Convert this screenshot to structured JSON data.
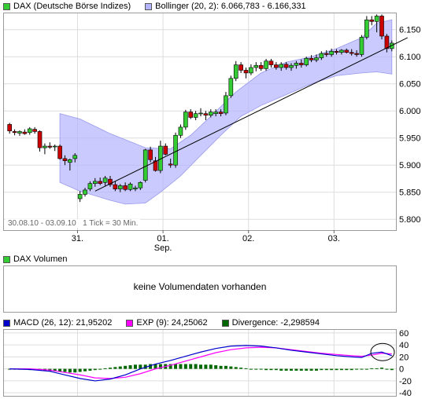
{
  "legend_top": {
    "series_label": "DAX (Deutsche Börse Indizes)",
    "series_color": "#33cc33",
    "bollinger_label": "Bollinger (20, 2): 6.066,783 - 6.166,331",
    "bollinger_color": "#b4b4ff"
  },
  "legend_volume": {
    "label": "DAX Volumen",
    "color": "#33cc33"
  },
  "volume_message": "keine Volumendaten vorhanden",
  "legend_macd": {
    "macd_label": "MACD (26, 12): 21,95202",
    "macd_color": "#0000cc",
    "exp_label": "EXP (9): 24,25062",
    "exp_color": "#ff00ff",
    "div_label": "Divergence: -2,298594",
    "div_color": "#006600"
  },
  "info_box": {
    "range": "30.08.10 - 03.09.10",
    "tick": "1 Tick = 30 Min."
  },
  "chart_data": [
    {
      "type": "candlestick",
      "ylim": [
        5780,
        6180
      ],
      "y_ticks": [
        "6.150",
        "6.100",
        "6.050",
        "6.000",
        "5.950",
        "5.900",
        "5.850",
        "5.800"
      ],
      "y_tick_values": [
        6150,
        6100,
        6050,
        6000,
        5950,
        5900,
        5850,
        5800
      ],
      "x_tick_labels": [
        "31.",
        "01.",
        "02.",
        "03."
      ],
      "x_sublabel": "Sep.",
      "grid": true,
      "candles": [
        [
          5975,
          5978,
          5958,
          5963
        ],
        [
          5962,
          5966,
          5955,
          5960
        ],
        [
          5959,
          5964,
          5954,
          5962
        ],
        [
          5961,
          5966,
          5956,
          5958
        ],
        [
          5960,
          5970,
          5956,
          5967
        ],
        [
          5966,
          5970,
          5958,
          5962
        ],
        [
          5962,
          5964,
          5925,
          5932
        ],
        [
          5932,
          5940,
          5920,
          5935
        ],
        [
          5935,
          5942,
          5930,
          5933
        ],
        [
          5934,
          5938,
          5926,
          5935
        ],
        [
          5935,
          5938,
          5910,
          5912
        ],
        [
          5912,
          5918,
          5900,
          5908
        ],
        [
          5905,
          5912,
          5890,
          5910
        ],
        [
          5912,
          5922,
          5905,
          5918
        ],
        [
          5838,
          5852,
          5832,
          5846
        ],
        [
          5846,
          5858,
          5842,
          5854
        ],
        [
          5856,
          5870,
          5852,
          5866
        ],
        [
          5866,
          5876,
          5860,
          5870
        ],
        [
          5870,
          5877,
          5863,
          5866
        ],
        [
          5868,
          5880,
          5862,
          5876
        ],
        [
          5874,
          5880,
          5860,
          5864
        ],
        [
          5864,
          5870,
          5852,
          5856
        ],
        [
          5856,
          5865,
          5850,
          5862
        ],
        [
          5862,
          5868,
          5852,
          5855
        ],
        [
          5855,
          5868,
          5852,
          5865
        ],
        [
          5856,
          5862,
          5852,
          5858
        ],
        [
          5858,
          5870,
          5854,
          5868
        ],
        [
          5872,
          5930,
          5868,
          5928
        ],
        [
          5928,
          5934,
          5905,
          5910
        ],
        [
          5908,
          5915,
          5888,
          5890
        ],
        [
          5890,
          5945,
          5885,
          5935
        ],
        [
          5935,
          5940,
          5918,
          5920
        ],
        [
          5902,
          5912,
          5895,
          5900
        ],
        [
          5900,
          5960,
          5895,
          5955
        ],
        [
          5955,
          5975,
          5950,
          5970
        ],
        [
          5970,
          6002,
          5965,
          5998
        ],
        [
          5998,
          6003,
          5985,
          5988
        ],
        [
          5988,
          6000,
          5983,
          5995
        ],
        [
          5995,
          6005,
          5990,
          5996
        ],
        [
          5995,
          6000,
          5983,
          5992
        ],
        [
          5992,
          6003,
          5988,
          5998
        ],
        [
          5995,
          6003,
          5990,
          5998
        ],
        [
          5998,
          6003,
          5990,
          5995
        ],
        [
          5996,
          6035,
          5992,
          6028
        ],
        [
          6028,
          6065,
          6024,
          6060
        ],
        [
          6060,
          6092,
          6055,
          6085
        ],
        [
          6085,
          6090,
          6070,
          6075
        ],
        [
          6075,
          6080,
          6060,
          6070
        ],
        [
          6070,
          6086,
          6066,
          6080
        ],
        [
          6080,
          6090,
          6073,
          6084
        ],
        [
          6084,
          6090,
          6074,
          6078
        ],
        [
          6078,
          6096,
          6074,
          6092
        ],
        [
          6092,
          6096,
          6080,
          6085
        ],
        [
          6085,
          6090,
          6076,
          6080
        ],
        [
          6080,
          6090,
          6074,
          6086
        ],
        [
          6086,
          6090,
          6076,
          6080
        ],
        [
          6080,
          6088,
          6074,
          6084
        ],
        [
          6084,
          6092,
          6078,
          6088
        ],
        [
          6088,
          6095,
          6080,
          6085
        ],
        [
          6085,
          6100,
          6082,
          6097
        ],
        [
          6097,
          6103,
          6090,
          6094
        ],
        [
          6094,
          6104,
          6090,
          6098
        ],
        [
          6098,
          6110,
          6094,
          6106
        ],
        [
          6106,
          6112,
          6100,
          6104
        ],
        [
          6104,
          6115,
          6100,
          6110
        ],
        [
          6110,
          6114,
          6104,
          6108
        ],
        [
          6108,
          6114,
          6104,
          6112
        ],
        [
          6112,
          6115,
          6106,
          6108
        ],
        [
          6108,
          6114,
          6102,
          6106
        ],
        [
          6106,
          6112,
          6100,
          6104
        ],
        [
          6104,
          6140,
          6100,
          6136
        ],
        [
          6136,
          6175,
          6132,
          6168
        ],
        [
          6168,
          6175,
          6158,
          6165
        ],
        [
          6165,
          6178,
          6145,
          6175
        ],
        [
          6175,
          6178,
          6132,
          6138
        ],
        [
          6138,
          6142,
          6108,
          6115
        ],
        [
          6115,
          6130,
          6110,
          6125
        ]
      ],
      "bollinger_upper": [
        [
          10,
          5995
        ],
        [
          14,
          5985
        ],
        [
          20,
          5958
        ],
        [
          27,
          5932
        ],
        [
          32,
          5930
        ],
        [
          36,
          5955
        ],
        [
          40,
          5990
        ],
        [
          45,
          6035
        ],
        [
          50,
          6070
        ],
        [
          55,
          6090
        ],
        [
          60,
          6100
        ],
        [
          65,
          6115
        ],
        [
          70,
          6135
        ],
        [
          73,
          6162
        ],
        [
          76,
          6168
        ]
      ],
      "bollinger_lower": [
        [
          10,
          5868
        ],
        [
          14,
          5852
        ],
        [
          20,
          5835
        ],
        [
          23,
          5828
        ],
        [
          27,
          5830
        ],
        [
          30,
          5850
        ],
        [
          34,
          5880
        ],
        [
          38,
          5918
        ],
        [
          42,
          5955
        ],
        [
          46,
          5990
        ],
        [
          50,
          6010
        ],
        [
          55,
          6030
        ],
        [
          60,
          6050
        ],
        [
          65,
          6065
        ],
        [
          70,
          6070
        ],
        [
          73,
          6072
        ],
        [
          76,
          6068
        ]
      ],
      "trendline": [
        [
          17,
          5852
        ],
        [
          76,
          6125
        ]
      ]
    },
    {
      "type": "macd",
      "ylim": [
        -45,
        65
      ],
      "y_ticks": [
        "60",
        "40",
        "20",
        "0",
        "-20",
        "-40"
      ],
      "y_tick_values": [
        60,
        40,
        20,
        0,
        -20,
        -40
      ],
      "macd": [
        [
          0,
          0
        ],
        [
          4,
          -1
        ],
        [
          8,
          -4
        ],
        [
          11,
          -10
        ],
        [
          14,
          -16
        ],
        [
          17,
          -20
        ],
        [
          20,
          -17
        ],
        [
          23,
          -10
        ],
        [
          26,
          0
        ],
        [
          29,
          8
        ],
        [
          32,
          14
        ],
        [
          35,
          21
        ],
        [
          38,
          28
        ],
        [
          41,
          34
        ],
        [
          44,
          38
        ],
        [
          47,
          39
        ],
        [
          50,
          38
        ],
        [
          53,
          35
        ],
        [
          56,
          31
        ],
        [
          59,
          28
        ],
        [
          62,
          25
        ],
        [
          65,
          22
        ],
        [
          68,
          20
        ],
        [
          70,
          19
        ],
        [
          72,
          26
        ],
        [
          74,
          28
        ],
        [
          76,
          22
        ]
      ],
      "exp": [
        [
          0,
          0
        ],
        [
          4,
          0
        ],
        [
          8,
          -2
        ],
        [
          11,
          -6
        ],
        [
          14,
          -10
        ],
        [
          17,
          -15
        ],
        [
          20,
          -16
        ],
        [
          23,
          -14
        ],
        [
          26,
          -8
        ],
        [
          29,
          0
        ],
        [
          32,
          6
        ],
        [
          35,
          13
        ],
        [
          38,
          20
        ],
        [
          41,
          27
        ],
        [
          44,
          32
        ],
        [
          47,
          35
        ],
        [
          50,
          36
        ],
        [
          53,
          35
        ],
        [
          56,
          32
        ],
        [
          59,
          29
        ],
        [
          62,
          26
        ],
        [
          65,
          24
        ],
        [
          68,
          22
        ],
        [
          70,
          21
        ],
        [
          72,
          23
        ],
        [
          74,
          26
        ],
        [
          76,
          25
        ]
      ],
      "divergence": [
        0,
        0,
        -1,
        -1,
        -2,
        -2,
        -3,
        -3,
        -4,
        -4,
        -5,
        -5,
        -6,
        -6,
        -5,
        -4,
        -3,
        -2,
        0,
        1,
        2,
        3,
        4,
        5,
        6,
        7,
        7,
        7,
        8,
        8,
        8,
        8,
        8,
        8,
        8,
        8,
        8,
        8,
        7,
        7,
        7,
        6,
        5,
        5,
        4,
        3,
        2,
        1,
        0,
        -1,
        -1,
        -2,
        -2,
        -2,
        -3,
        -3,
        -3,
        -3,
        -3,
        -3,
        -3,
        -3,
        -2,
        -2,
        -2,
        -2,
        -2,
        -2,
        -2,
        -1,
        -1,
        0,
        1,
        1,
        2,
        0,
        -2
      ]
    }
  ]
}
